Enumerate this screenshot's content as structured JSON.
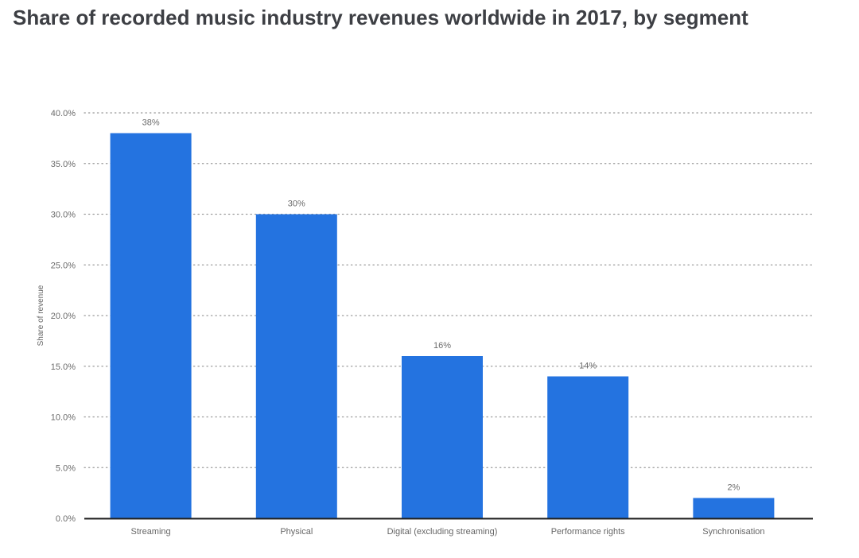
{
  "chart_data": {
    "type": "bar",
    "title": "Share of recorded music industry revenues worldwide in 2017, by segment",
    "xlabel": "",
    "ylabel": "Share of revenue",
    "categories": [
      "Streaming",
      "Physical",
      "Digital (excluding streaming)",
      "Performance rights",
      "Synchronisation"
    ],
    "values": [
      38,
      30,
      16,
      14,
      2
    ],
    "data_labels": [
      "38%",
      "30%",
      "16%",
      "14%",
      "2%"
    ],
    "ylim": [
      0,
      40
    ],
    "yticks": [
      0,
      5,
      10,
      15,
      20,
      25,
      30,
      35,
      40
    ],
    "ytick_labels": [
      "0.0%",
      "5.0%",
      "10.0%",
      "15.0%",
      "20.0%",
      "25.0%",
      "30.0%",
      "35.0%",
      "40.0%"
    ],
    "grid": true,
    "grid_style": "dotted",
    "legend": "none",
    "bar_color": "#2473e0",
    "axis_color": "#222222",
    "grid_color": "#9a9a9a"
  }
}
